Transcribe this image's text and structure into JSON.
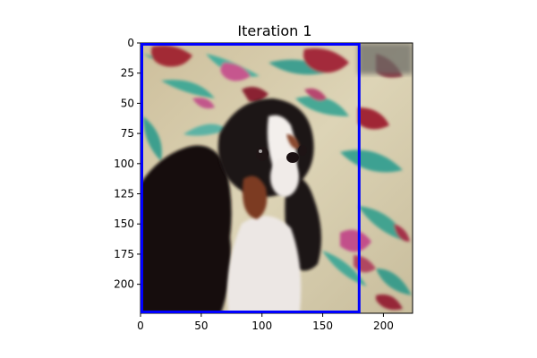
{
  "title": "Iteration 1",
  "x_ticks": [
    "0",
    "50",
    "100",
    "150",
    "200"
  ],
  "y_ticks": [
    "0",
    "25",
    "50",
    "75",
    "100",
    "125",
    "150",
    "175",
    "200"
  ],
  "image": {
    "width": 224,
    "height": 224,
    "subject": "cavalier-king-charles-spaniel",
    "background": "floral-bedspread"
  },
  "box": {
    "x0": 0,
    "y0": 0,
    "x1": 180,
    "y1": 224,
    "color": "#0000ff"
  },
  "colors": {
    "cream": "#d8cfb0",
    "teal": "#3fa89a",
    "red": "#9e2a3a",
    "pink": "#c65a8f",
    "dark": "#161012",
    "brown": "#7a3a24"
  }
}
